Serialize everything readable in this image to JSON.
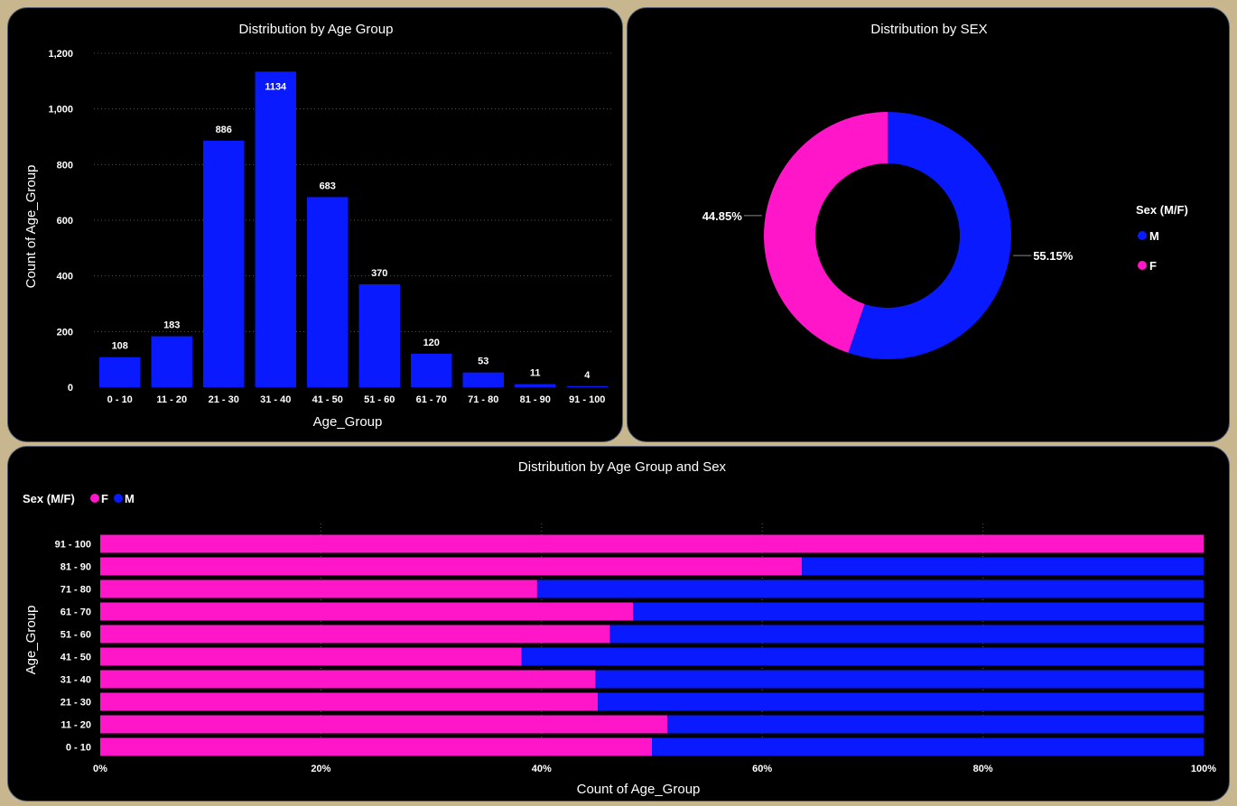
{
  "colors": {
    "male": "#0a1aff",
    "female": "#ff16c8",
    "bar": "#0a1aff"
  },
  "chart_data": [
    {
      "type": "bar",
      "title": "Distribution by Age Group",
      "xlabel": "Age_Group",
      "ylabel": "Count of Age_Group",
      "categories": [
        "0 - 10",
        "11 - 20",
        "21 - 30",
        "31 - 40",
        "41 - 50",
        "51 - 60",
        "61 - 70",
        "71 - 80",
        "81 - 90",
        "91 - 100"
      ],
      "values": [
        108,
        183,
        886,
        1134,
        683,
        370,
        120,
        53,
        11,
        4
      ],
      "ylim": [
        0,
        1200
      ],
      "yticks": [
        0,
        200,
        400,
        600,
        800,
        1000,
        1200
      ],
      "ytick_labels": [
        "0",
        "200",
        "400",
        "600",
        "800",
        "1,000",
        "1,200"
      ],
      "grid": true
    },
    {
      "type": "pie",
      "title": "Distribution by SEX",
      "legend_title": "Sex (M/F)",
      "legend_placement": "right",
      "slices": [
        {
          "name": "M",
          "value": 55.15,
          "label": "55.15%"
        },
        {
          "name": "F",
          "value": 44.85,
          "label": "44.85%"
        }
      ]
    },
    {
      "type": "bar",
      "title": "Distribution by Age Group and Sex",
      "xlabel": "Count of Age_Group",
      "ylabel": "Age_Group",
      "legend_title": "Sex (M/F)",
      "legend_placement": "top-left",
      "stacked_percent": true,
      "categories": [
        "91 - 100",
        "81 - 90",
        "71 - 80",
        "61 - 70",
        "51 - 60",
        "41 - 50",
        "31 - 40",
        "21 - 30",
        "11 - 20",
        "0 - 10"
      ],
      "series": [
        {
          "name": "F",
          "values": [
            100,
            63.6,
            39.6,
            48.3,
            46.2,
            38.2,
            44.9,
            45.1,
            51.4,
            50.0
          ]
        },
        {
          "name": "M",
          "values": [
            0,
            36.4,
            60.4,
            51.7,
            53.8,
            61.8,
            55.1,
            54.9,
            48.6,
            50.0
          ]
        }
      ],
      "xlim": [
        0,
        100
      ],
      "xticks": [
        0,
        20,
        40,
        60,
        80,
        100
      ],
      "xtick_labels": [
        "0%",
        "20%",
        "40%",
        "60%",
        "80%",
        "100%"
      ],
      "grid": true
    }
  ]
}
